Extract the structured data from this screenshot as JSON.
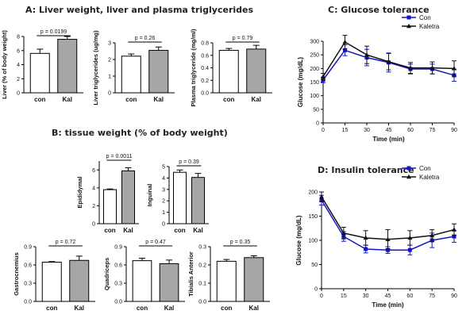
{
  "sections": {
    "a_title": "A: Liver weight, liver and plasma triglycerides",
    "b_title": "B: tissue weight (% of body weight)",
    "c_title": "C: Glucose tolerance",
    "d_title": "D: Insulin tolerance"
  },
  "colors": {
    "con_bar": "#ffffff",
    "kal_bar": "#a6a6a8",
    "con_line": "#1515c8",
    "kal_line": "#111111"
  },
  "chart_data": [
    {
      "id": "liver",
      "type": "bar",
      "ylabel": "Liver (% of body weight)",
      "categories": [
        "con",
        "Kal"
      ],
      "values": [
        5.6,
        7.6
      ],
      "errors": [
        0.6,
        0.4
      ],
      "ylim": [
        0,
        8
      ],
      "yticks": [
        "0",
        "2",
        "4",
        "6",
        "8"
      ],
      "pvalue": "p = 0.0199"
    },
    {
      "id": "liver_tg",
      "type": "bar",
      "ylabel": "Liver triglycerides (ug/mg)",
      "categories": [
        "con",
        "Kal"
      ],
      "values": [
        2.2,
        2.55
      ],
      "errors": [
        0.13,
        0.2
      ],
      "ylim": [
        0,
        3
      ],
      "yticks": [
        "0",
        "1",
        "2",
        "3"
      ],
      "pvalue": "p = 0.26"
    },
    {
      "id": "plasma_tg",
      "type": "bar",
      "ylabel": "Plasma triglyceride (mg/ml)",
      "categories": [
        "con",
        "Kal"
      ],
      "values": [
        0.68,
        0.7
      ],
      "errors": [
        0.03,
        0.06
      ],
      "ylim": [
        0,
        0.8
      ],
      "yticks": [
        "0.0",
        "0.2",
        "0.4",
        "0.6",
        "0.8"
      ],
      "pvalue": "p = 0.79"
    },
    {
      "id": "epididymal",
      "type": "bar",
      "ylabel": "Epididymal",
      "categories": [
        "con",
        "Kal"
      ],
      "values": [
        3.8,
        5.9
      ],
      "errors": [
        0.08,
        0.35
      ],
      "ylim": [
        0,
        7
      ],
      "yticks": [
        "0",
        "2",
        "4",
        "6"
      ],
      "pvalue": "p = 0.0011"
    },
    {
      "id": "inguinal",
      "type": "bar",
      "ylabel": "Inguinal",
      "categories": [
        "con",
        "Kal"
      ],
      "values": [
        4.5,
        4.05
      ],
      "errors": [
        0.2,
        0.35
      ],
      "ylim": [
        0,
        5
      ],
      "yticks": [
        "0",
        "1",
        "2",
        "3",
        "4",
        "5"
      ],
      "pvalue": "p = 0.39"
    },
    {
      "id": "gastrocnemius",
      "type": "bar",
      "ylabel": "Gastrocnemius",
      "categories": [
        "con",
        "Kal"
      ],
      "values": [
        0.645,
        0.675
      ],
      "errors": [
        0.01,
        0.07
      ],
      "ylim": [
        0,
        0.9
      ],
      "yticks": [
        "0.0",
        "0.3",
        "0.6",
        "0.9"
      ],
      "pvalue": "p = 0.72"
    },
    {
      "id": "quadriceps",
      "type": "bar",
      "ylabel": "Quadriceps",
      "categories": [
        "con",
        "Kal"
      ],
      "values": [
        0.67,
        0.62
      ],
      "errors": [
        0.04,
        0.06
      ],
      "ylim": [
        0,
        0.9
      ],
      "yticks": [
        "0.0",
        "0.3",
        "0.6",
        "0.9"
      ],
      "pvalue": "p = 0.47"
    },
    {
      "id": "tibialis",
      "type": "bar",
      "ylabel": "Tibialis Anterior",
      "categories": [
        "con",
        "Kal"
      ],
      "values": [
        0.22,
        0.24
      ],
      "errors": [
        0.01,
        0.01
      ],
      "ylim": [
        0,
        0.3
      ],
      "yticks": [
        "0.0",
        "0.1",
        "0.2",
        "0.3"
      ],
      "pvalue": "p = 0.35"
    },
    {
      "id": "gtt",
      "type": "line",
      "xlabel": "Time (min)",
      "ylabel": "Glucose (mg/dL)",
      "x": [
        0,
        15,
        30,
        45,
        60,
        75,
        90
      ],
      "xticks": [
        "0",
        "15",
        "30",
        "45",
        "60",
        "75",
        "90"
      ],
      "ylim": [
        0,
        300
      ],
      "yticks": [
        "0",
        "50",
        "100",
        "150",
        "200",
        "250",
        "300"
      ],
      "legend_position": "top-right",
      "series": [
        {
          "name": "Con",
          "values": [
            158,
            267,
            240,
            222,
            198,
            198,
            175
          ],
          "errors": [
            10,
            20,
            30,
            35,
            18,
            18,
            22
          ]
        },
        {
          "name": "Kaletra",
          "values": [
            170,
            297,
            250,
            225,
            202,
            202,
            200
          ],
          "errors": [
            12,
            25,
            32,
            30,
            20,
            22,
            28
          ]
        }
      ]
    },
    {
      "id": "itt",
      "type": "line",
      "xlabel": "Time (min)",
      "ylabel": "Glucose (mg/dL)",
      "x": [
        0,
        15,
        30,
        45,
        60,
        75,
        90
      ],
      "xticks": [
        "0",
        "15",
        "30",
        "45",
        "60",
        "75",
        "90"
      ],
      "ylim": [
        0,
        200
      ],
      "yticks": [
        "0",
        "50",
        "100",
        "150",
        "200"
      ],
      "legend_position": "top-right",
      "series": [
        {
          "name": "Con",
          "values": [
            183,
            108,
            82,
            80,
            80,
            100,
            108
          ],
          "errors": [
            10,
            10,
            8,
            7,
            10,
            15,
            12
          ]
        },
        {
          "name": "Kaletra",
          "values": [
            190,
            115,
            105,
            102,
            105,
            110,
            122
          ],
          "errors": [
            10,
            12,
            15,
            20,
            15,
            12,
            12
          ]
        }
      ]
    }
  ]
}
